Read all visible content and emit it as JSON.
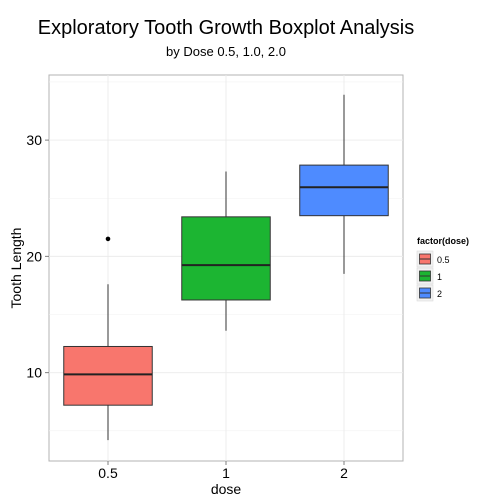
{
  "chart_data": {
    "type": "boxplot",
    "title": "Exploratory Tooth Growth Boxplot Analysis",
    "subtitle": "by Dose 0.5, 1.0, 2.0",
    "xlabel": "dose",
    "ylabel": "Tooth Length",
    "categories": [
      "0.5",
      "1",
      "2"
    ],
    "ylim": [
      2.4,
      35.6
    ],
    "yticks": [
      10,
      20,
      30
    ],
    "grid": true,
    "legend": {
      "title": "factor(dose)",
      "position": "right",
      "entries": [
        "0.5",
        "1",
        "2"
      ]
    },
    "colors": [
      "#F8766D",
      "#1CB532",
      "#4E8BFF"
    ],
    "boxes": [
      {
        "category": "0.5",
        "min": 4.2,
        "q1": 7.2,
        "median": 9.85,
        "q3": 12.25,
        "max": 17.6,
        "outliers": [
          21.5
        ]
      },
      {
        "category": "1",
        "min": 13.6,
        "q1": 16.25,
        "median": 19.25,
        "q3": 23.4,
        "max": 27.3,
        "outliers": []
      },
      {
        "category": "2",
        "min": 18.5,
        "q1": 23.5,
        "median": 25.95,
        "q3": 27.85,
        "max": 33.9,
        "outliers": []
      }
    ]
  }
}
